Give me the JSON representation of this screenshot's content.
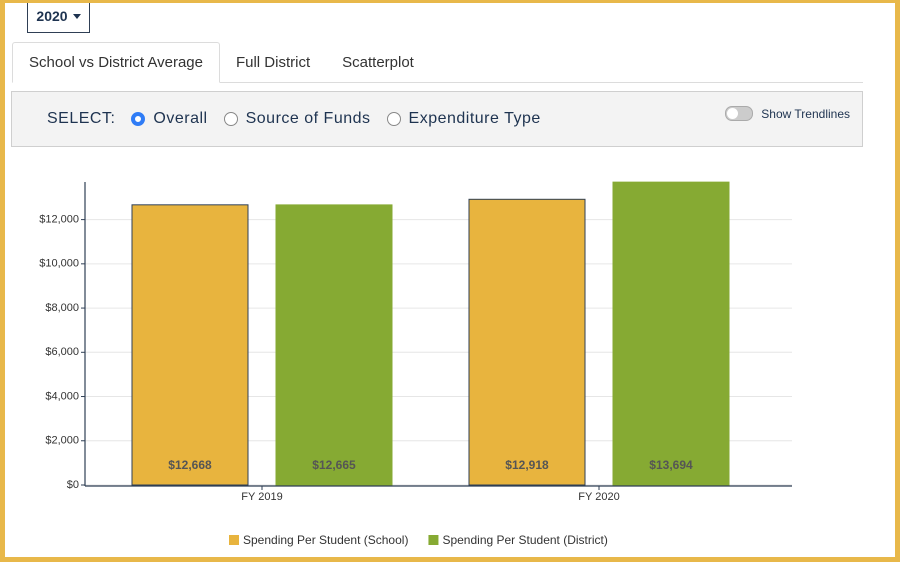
{
  "year_dropdown": "2020",
  "tabs": [
    "School vs District Average",
    "Full District",
    "Scatterplot"
  ],
  "active_tab": 0,
  "select": {
    "label": "SELECT:",
    "options": [
      "Overall",
      "Source of Funds",
      "Expenditure Type"
    ],
    "selected": 0
  },
  "toggle": "Show Trendlines",
  "chart_data": {
    "type": "bar",
    "categories": [
      "FY 2019",
      "FY 2020"
    ],
    "series": [
      {
        "name": "Spending Per Student (School)",
        "color": "#e8b43e",
        "values": [
          12668,
          12918
        ],
        "value_labels": [
          "$12,668",
          "$12,918"
        ]
      },
      {
        "name": "Spending Per Student (District)",
        "color": "#86aa33",
        "values": [
          12665,
          13694
        ],
        "value_labels": [
          "$12,665",
          "$13,694"
        ]
      }
    ],
    "ylim": [
      0,
      13700
    ],
    "yticks": [
      {
        "value": 0,
        "label": "$0"
      },
      {
        "value": 2000,
        "label": "$2,000"
      },
      {
        "value": 4000,
        "label": "$4,000"
      },
      {
        "value": 6000,
        "label": "$6,000"
      },
      {
        "value": 8000,
        "label": "$8,000"
      },
      {
        "value": 10000,
        "label": "$10,000"
      },
      {
        "value": 12000,
        "label": "$12,000"
      }
    ],
    "grid": true
  }
}
